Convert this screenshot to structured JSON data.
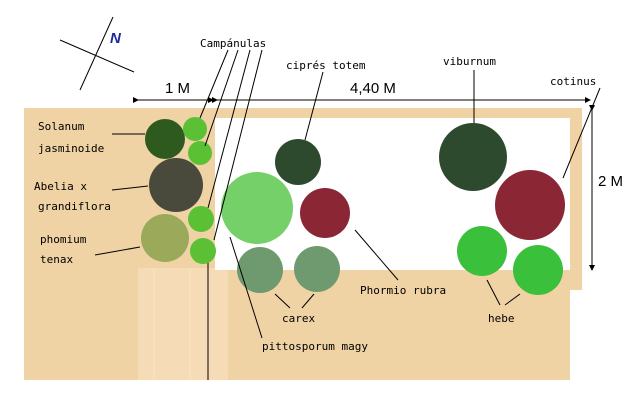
{
  "compass": "N",
  "dimensions": {
    "width_left": "1 M",
    "width_main": "4,40 M",
    "depth": "2 M"
  },
  "labels": {
    "campanulas": "Campánulas",
    "cipres": "ciprés totem",
    "viburnum": "viburnum",
    "cotinus": "cotinus",
    "solanum": [
      "Solanum",
      "jasminoide"
    ],
    "abelia": [
      "Abelia x",
      "grandiflora"
    ],
    "phomium": [
      "phomium",
      "tenax"
    ],
    "phormio": "Phormio rubra",
    "carex": "carex",
    "hebe": "hebe",
    "pittosporum": "pittosporum magy"
  }
}
